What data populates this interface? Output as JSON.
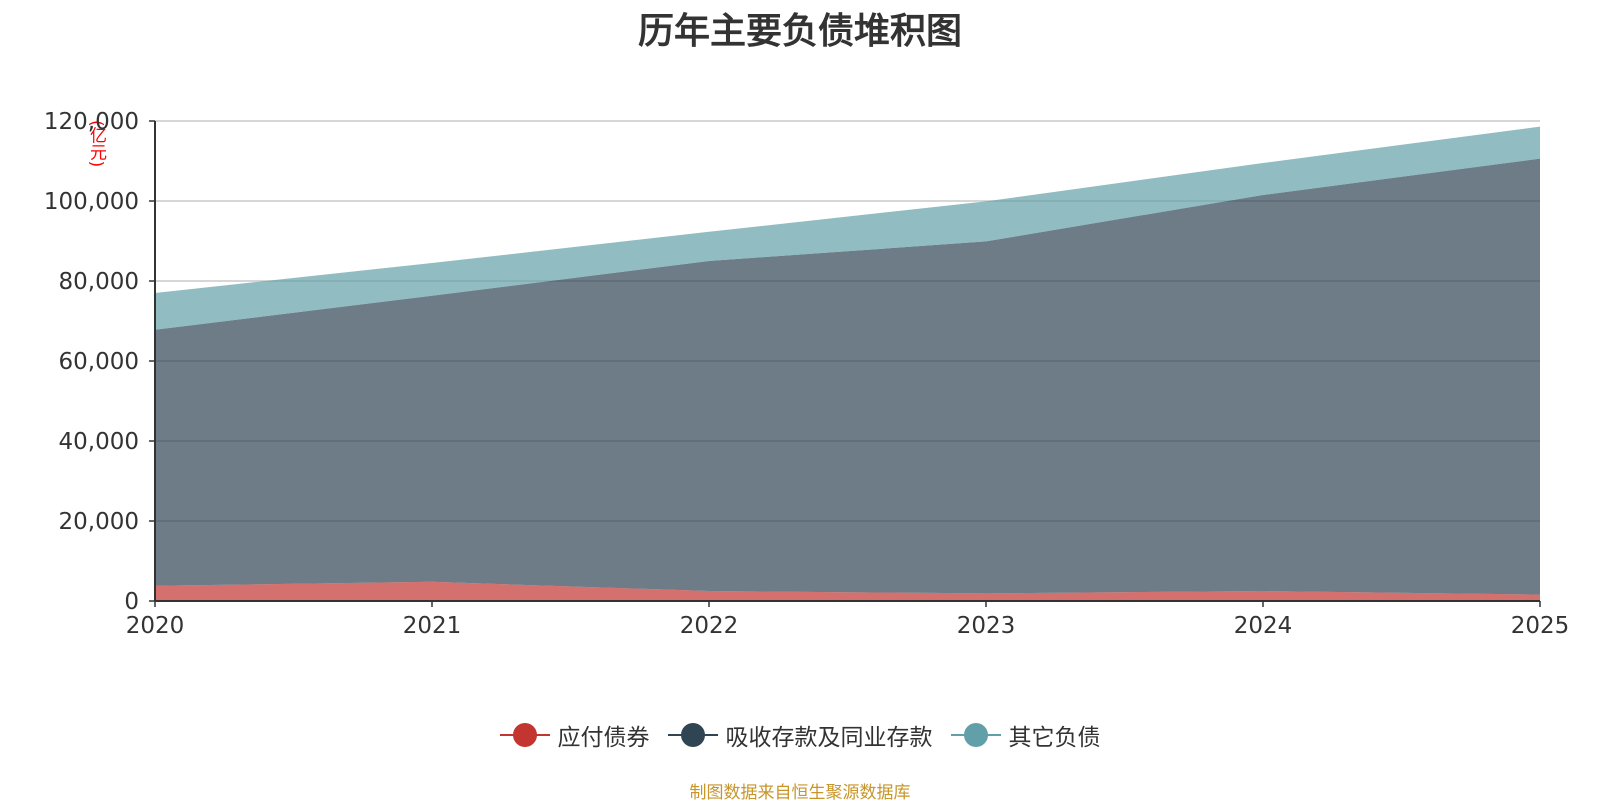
{
  "chart_data": {
    "type": "area",
    "stacked": true,
    "title": "历年主要负债堆积图",
    "ylabel": "(亿元)",
    "x": [
      "2020",
      "2021",
      "2022",
      "2023",
      "2024",
      "2025"
    ],
    "ylim": [
      0,
      120000
    ],
    "yticks": [
      "0",
      "20,000",
      "40,000",
      "60,000",
      "80,000",
      "100,000",
      "120,000"
    ],
    "series": [
      {
        "name": "应付债券",
        "color": "#c23531",
        "values": [
          3800,
          4800,
          2500,
          1900,
          2500,
          1600
        ]
      },
      {
        "name": "吸收存款及同业存款",
        "color": "#2f4554",
        "values": [
          64000,
          71500,
          82500,
          88000,
          99000,
          109000
        ]
      },
      {
        "name": "其它负债",
        "color": "#61a0a8",
        "values": [
          9200,
          8200,
          7300,
          10000,
          8000,
          8000
        ]
      }
    ],
    "legend_position": "bottom",
    "source": "制图数据来自恒生聚源数据库"
  }
}
